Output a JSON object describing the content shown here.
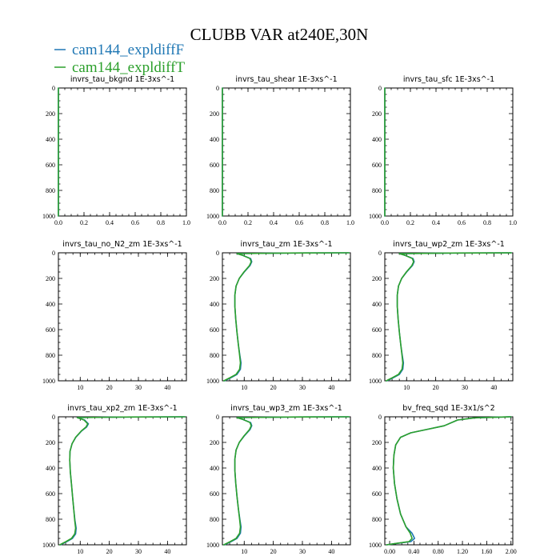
{
  "chart_data": {
    "title": "CLUBB VAR at240E,30N",
    "legend": [
      {
        "name": "cam144_expldiffF",
        "color": "#1f77b4"
      },
      {
        "name": "cam144_expldiffT",
        "color": "#2ca02c"
      }
    ],
    "panels": [
      {
        "type": "line",
        "title": "invrs_tau_bkgnd",
        "units": "1E-3xs^-1",
        "xlim": [
          0,
          1
        ],
        "ylim": [
          1000,
          0
        ],
        "xticks": [
          0,
          0.2,
          0.4,
          0.6,
          0.8,
          1.0
        ],
        "xticklabels": [
          "0.0",
          "0.2",
          "0.4",
          "0.6",
          "0.8",
          "1.0"
        ],
        "yticks": [
          0,
          200,
          400,
          600,
          800,
          1000
        ],
        "series": [
          {
            "x": [
              0,
              0,
              0
            ],
            "y": [
              0,
              500,
              1000
            ]
          },
          {
            "x": [
              0,
              0,
              0
            ],
            "y": [
              0,
              500,
              1000
            ]
          }
        ]
      },
      {
        "type": "line",
        "title": "invrs_tau_shear",
        "units": "1E-3xs^-1",
        "xlim": [
          0,
          1
        ],
        "ylim": [
          1000,
          0
        ],
        "xticks": [
          0,
          0.2,
          0.4,
          0.6,
          0.8,
          1.0
        ],
        "xticklabels": [
          "0.0",
          "0.2",
          "0.4",
          "0.6",
          "0.8",
          "1.0"
        ],
        "yticks": [
          0,
          200,
          400,
          600,
          800,
          1000
        ],
        "series": [
          {
            "x": [
              0,
              0,
              0
            ],
            "y": [
              0,
              500,
              1000
            ]
          },
          {
            "x": [
              0,
              0,
              0
            ],
            "y": [
              0,
              500,
              1000
            ]
          }
        ]
      },
      {
        "type": "line",
        "title": "invrs_tau_sfc",
        "units": "1E-3xs^-1",
        "xlim": [
          0,
          1
        ],
        "ylim": [
          1000,
          0
        ],
        "xticks": [
          0,
          0.2,
          0.4,
          0.6,
          0.8,
          1.0
        ],
        "xticklabels": [
          "0.0",
          "0.2",
          "0.4",
          "0.6",
          "0.8",
          "1.0"
        ],
        "yticks": [
          0,
          200,
          400,
          600,
          800,
          1000
        ],
        "series": [
          {
            "x": [
              0,
              0,
              0
            ],
            "y": [
              0,
              500,
              1000
            ]
          },
          {
            "x": [
              0,
              0,
              0
            ],
            "y": [
              0,
              500,
              1000
            ]
          }
        ]
      },
      {
        "type": "line",
        "title": "invrs_tau_no_N2_zm",
        "units": "1E-3xs^-1",
        "xlim": [
          2.5,
          46.5
        ],
        "ylim": [
          1000,
          0
        ],
        "xticks": [
          10,
          20,
          30,
          40
        ],
        "xticklabels": [
          "10",
          "20",
          "30",
          "40"
        ],
        "yticks": [
          0,
          200,
          400,
          600,
          800,
          1000
        ],
        "series": []
      },
      {
        "type": "line",
        "title": "invrs_tau_zm",
        "units": "1E-3xs^-1",
        "xlim": [
          2.5,
          46.5
        ],
        "ylim": [
          1000,
          0
        ],
        "xticks": [
          10,
          20,
          30,
          40
        ],
        "xticklabels": [
          "10",
          "20",
          "30",
          "40"
        ],
        "yticks": [
          0,
          200,
          400,
          600,
          800,
          1000
        ],
        "series": [
          {
            "x": [
              46,
              25,
              7.5,
              9.5,
              12.2,
              12.6,
              12,
              10,
              8.3,
              7.2,
              6.8,
              6.8,
              7.1,
              7.5,
              8,
              8.5,
              8.9,
              8.7,
              7.5,
              5.5,
              3.2
            ],
            "y": [
              0,
              2,
              6,
              20,
              45,
              70,
              100,
              150,
              200,
              260,
              330,
              420,
              520,
              620,
              720,
              800,
              860,
              910,
              950,
              975,
              1000
            ]
          },
          {
            "x": [
              46,
              25,
              7.5,
              9.5,
              12,
              12.4,
              11.8,
              9.9,
              8.3,
              7.2,
              6.8,
              6.8,
              7.1,
              7.5,
              8,
              8.4,
              8.7,
              8.4,
              7.2,
              5.2,
              3
            ],
            "y": [
              0,
              2,
              6,
              20,
              45,
              70,
              100,
              150,
              200,
              260,
              330,
              420,
              520,
              620,
              720,
              800,
              860,
              910,
              950,
              975,
              1000
            ]
          }
        ]
      },
      {
        "type": "line",
        "title": "invrs_tau_wp2_zm",
        "units": "1E-3xs^-1",
        "xlim": [
          2.5,
          46.5
        ],
        "ylim": [
          1000,
          0
        ],
        "xticks": [
          10,
          20,
          30,
          40
        ],
        "xticklabels": [
          "10",
          "20",
          "30",
          "40"
        ],
        "yticks": [
          0,
          200,
          400,
          600,
          800,
          1000
        ],
        "series": [
          {
            "x": [
              46,
              25,
              7.5,
              9.5,
              12.2,
              12.6,
              12,
              10,
              8.3,
              7.2,
              6.8,
              6.8,
              7.1,
              7.5,
              8,
              8.5,
              8.9,
              8.7,
              7.5,
              5.5,
              3.2
            ],
            "y": [
              0,
              2,
              6,
              20,
              45,
              70,
              100,
              150,
              200,
              260,
              330,
              420,
              520,
              620,
              720,
              800,
              860,
              910,
              950,
              975,
              1000
            ]
          },
          {
            "x": [
              46,
              25,
              7.5,
              9.5,
              12,
              12.4,
              11.8,
              9.9,
              8.3,
              7.2,
              6.8,
              6.8,
              7.1,
              7.5,
              8,
              8.4,
              8.7,
              8.4,
              7.2,
              5.2,
              3
            ],
            "y": [
              0,
              2,
              6,
              20,
              45,
              70,
              100,
              150,
              200,
              260,
              330,
              420,
              520,
              620,
              720,
              800,
              860,
              910,
              950,
              975,
              1000
            ]
          }
        ]
      },
      {
        "type": "line",
        "title": "invrs_tau_xp2_zm",
        "units": "1E-3xs^-1",
        "xlim": [
          2.5,
          46.5
        ],
        "ylim": [
          1000,
          0
        ],
        "xticks": [
          10,
          20,
          30,
          40
        ],
        "xticklabels": [
          "10",
          "20",
          "30",
          "40"
        ],
        "yticks": [
          0,
          200,
          400,
          600,
          800,
          1000
        ],
        "series": [
          {
            "x": [
              46,
              25,
              9,
              11.5,
              12.8,
              12.2,
              10.5,
              8.5,
              7.2,
              6.5,
              6.4,
              6.6,
              7,
              7.4,
              7.8,
              8.2,
              8.6,
              8.4,
              7.3,
              5.4,
              3.2
            ],
            "y": [
              0,
              2,
              6,
              25,
              55,
              80,
              110,
              160,
              210,
              270,
              340,
              430,
              530,
              630,
              730,
              810,
              870,
              915,
              950,
              975,
              1000
            ]
          },
          {
            "x": [
              46,
              25,
              9,
              11.3,
              12.6,
              12,
              10.4,
              8.4,
              7.2,
              6.5,
              6.4,
              6.6,
              7,
              7.4,
              7.8,
              8.1,
              8.4,
              8.1,
              7,
              5.1,
              3
            ],
            "y": [
              0,
              2,
              6,
              25,
              55,
              80,
              110,
              160,
              210,
              270,
              340,
              430,
              530,
              630,
              730,
              810,
              870,
              915,
              950,
              975,
              1000
            ]
          }
        ]
      },
      {
        "type": "line",
        "title": "invrs_tau_wp3_zm",
        "units": "1E-3xs^-1",
        "xlim": [
          2.5,
          46.5
        ],
        "ylim": [
          1000,
          0
        ],
        "xticks": [
          10,
          20,
          30,
          40
        ],
        "xticklabels": [
          "10",
          "20",
          "30",
          "40"
        ],
        "yticks": [
          0,
          200,
          400,
          600,
          800,
          1000
        ],
        "series": [
          {
            "x": [
              46,
              25,
              7.5,
              9.5,
              12.2,
              12.6,
              12,
              10,
              8.3,
              7.2,
              6.8,
              6.8,
              7.1,
              7.5,
              8,
              8.5,
              8.9,
              8.7,
              7.5,
              5.5,
              3.2
            ],
            "y": [
              0,
              2,
              6,
              20,
              45,
              70,
              100,
              150,
              200,
              260,
              330,
              420,
              520,
              620,
              720,
              800,
              860,
              910,
              950,
              975,
              1000
            ]
          },
          {
            "x": [
              46,
              25,
              7.5,
              9.5,
              12,
              12.4,
              11.8,
              9.9,
              8.3,
              7.2,
              6.8,
              6.8,
              7.1,
              7.5,
              8,
              8.4,
              8.7,
              8.4,
              7.2,
              5.2,
              3
            ],
            "y": [
              0,
              2,
              6,
              20,
              45,
              70,
              100,
              150,
              200,
              260,
              330,
              420,
              520,
              620,
              720,
              800,
              860,
              910,
              950,
              975,
              1000
            ]
          }
        ]
      },
      {
        "type": "line",
        "title": "bv_freq_sqd",
        "units": "1E-3x1/s^2",
        "xlim": [
          -0.08,
          2.03
        ],
        "ylim": [
          1000,
          0
        ],
        "xticks": [
          0,
          0.4,
          0.8,
          1.2,
          1.6,
          2.0
        ],
        "xticklabels": [
          "0.00",
          "0.40",
          "0.80",
          "1.20",
          "1.60",
          "2.00"
        ],
        "yticks": [
          0,
          200,
          400,
          600,
          800,
          1000
        ],
        "series": [
          {
            "x": [
              2.0,
              1.4,
              1.12,
              0.9,
              0.6,
              0.35,
              0.18,
              0.1,
              0.07,
              0.06,
              0.08,
              0.12,
              0.18,
              0.27,
              0.37,
              0.41,
              0.35,
              0.1,
              -0.05
            ],
            "y": [
              0,
              8,
              25,
              70,
              100,
              125,
              160,
              220,
              300,
              400,
              520,
              640,
              760,
              860,
              910,
              950,
              975,
              990,
              1000
            ]
          },
          {
            "x": [
              2.0,
              1.4,
              1.12,
              0.9,
              0.6,
              0.35,
              0.18,
              0.1,
              0.07,
              0.06,
              0.08,
              0.12,
              0.18,
              0.27,
              0.34,
              0.37,
              0.32,
              0.09,
              -0.05
            ],
            "y": [
              0,
              8,
              25,
              70,
              100,
              125,
              160,
              220,
              300,
              400,
              520,
              640,
              760,
              860,
              910,
              950,
              975,
              990,
              1000
            ]
          }
        ]
      }
    ]
  }
}
